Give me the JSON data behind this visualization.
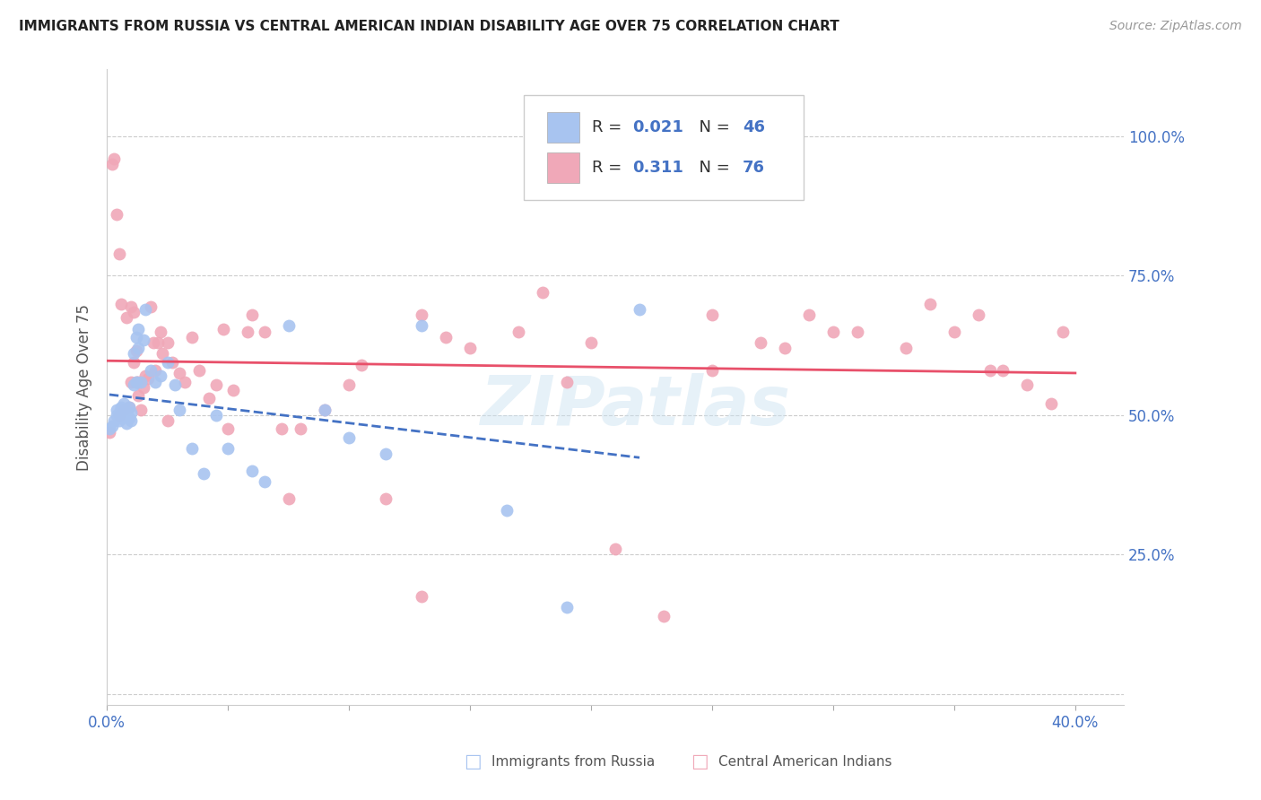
{
  "title": "IMMIGRANTS FROM RUSSIA VS CENTRAL AMERICAN INDIAN DISABILITY AGE OVER 75 CORRELATION CHART",
  "source": "Source: ZipAtlas.com",
  "ylabel_label": "Disability Age Over 75",
  "xlim": [
    0.0,
    0.42
  ],
  "ylim": [
    -0.02,
    1.12
  ],
  "color_russia": "#a8c4f0",
  "color_central": "#f0a8b8",
  "color_russia_line": "#4472c4",
  "color_central_line": "#e8506a",
  "color_axis_label": "#4472c4",
  "color_grid": "#cccccc",
  "watermark": "ZIPatlas",
  "legend_r1_black": "R = ",
  "legend_r1_blue": "0.021",
  "legend_n1_black": "  N = ",
  "legend_n1_blue": "46",
  "legend_r2_black": "R = ",
  "legend_r2_blue": "0.311",
  "legend_n2_black": "  N = ",
  "legend_n2_blue": "76",
  "russia_x": [
    0.001,
    0.002,
    0.003,
    0.004,
    0.004,
    0.005,
    0.005,
    0.006,
    0.006,
    0.007,
    0.007,
    0.008,
    0.008,
    0.009,
    0.009,
    0.01,
    0.01,
    0.011,
    0.011,
    0.012,
    0.012,
    0.013,
    0.013,
    0.014,
    0.015,
    0.016,
    0.018,
    0.02,
    0.022,
    0.025,
    0.028,
    0.03,
    0.035,
    0.04,
    0.045,
    0.05,
    0.06,
    0.065,
    0.075,
    0.09,
    0.1,
    0.115,
    0.13,
    0.165,
    0.19,
    0.22
  ],
  "russia_y": [
    0.475,
    0.48,
    0.49,
    0.5,
    0.51,
    0.49,
    0.505,
    0.495,
    0.515,
    0.5,
    0.52,
    0.505,
    0.485,
    0.495,
    0.515,
    0.505,
    0.49,
    0.61,
    0.555,
    0.56,
    0.64,
    0.62,
    0.655,
    0.56,
    0.635,
    0.69,
    0.58,
    0.56,
    0.57,
    0.595,
    0.555,
    0.51,
    0.44,
    0.395,
    0.5,
    0.44,
    0.4,
    0.38,
    0.66,
    0.51,
    0.46,
    0.43,
    0.66,
    0.33,
    0.155,
    0.69
  ],
  "central_x": [
    0.001,
    0.002,
    0.003,
    0.004,
    0.005,
    0.005,
    0.006,
    0.007,
    0.008,
    0.009,
    0.01,
    0.01,
    0.011,
    0.011,
    0.012,
    0.012,
    0.013,
    0.013,
    0.014,
    0.015,
    0.016,
    0.017,
    0.018,
    0.019,
    0.02,
    0.021,
    0.022,
    0.023,
    0.025,
    0.027,
    0.03,
    0.032,
    0.035,
    0.038,
    0.042,
    0.045,
    0.048,
    0.052,
    0.058,
    0.065,
    0.072,
    0.08,
    0.09,
    0.1,
    0.115,
    0.13,
    0.15,
    0.17,
    0.19,
    0.21,
    0.23,
    0.25,
    0.27,
    0.29,
    0.31,
    0.33,
    0.35,
    0.365,
    0.38,
    0.39,
    0.395,
    0.06,
    0.13,
    0.2,
    0.28,
    0.34,
    0.36,
    0.37,
    0.3,
    0.25,
    0.18,
    0.14,
    0.105,
    0.075,
    0.05,
    0.025
  ],
  "central_y": [
    0.47,
    0.95,
    0.96,
    0.86,
    0.79,
    0.5,
    0.7,
    0.51,
    0.675,
    0.515,
    0.695,
    0.56,
    0.685,
    0.595,
    0.56,
    0.615,
    0.56,
    0.535,
    0.51,
    0.55,
    0.57,
    0.565,
    0.695,
    0.63,
    0.58,
    0.63,
    0.65,
    0.61,
    0.63,
    0.595,
    0.575,
    0.56,
    0.64,
    0.58,
    0.53,
    0.555,
    0.655,
    0.545,
    0.65,
    0.65,
    0.475,
    0.475,
    0.51,
    0.555,
    0.35,
    0.175,
    0.62,
    0.65,
    0.56,
    0.26,
    0.14,
    0.68,
    0.63,
    0.68,
    0.65,
    0.62,
    0.65,
    0.58,
    0.555,
    0.52,
    0.65,
    0.68,
    0.68,
    0.63,
    0.62,
    0.7,
    0.68,
    0.58,
    0.65,
    0.58,
    0.72,
    0.64,
    0.59,
    0.35,
    0.475,
    0.49
  ]
}
